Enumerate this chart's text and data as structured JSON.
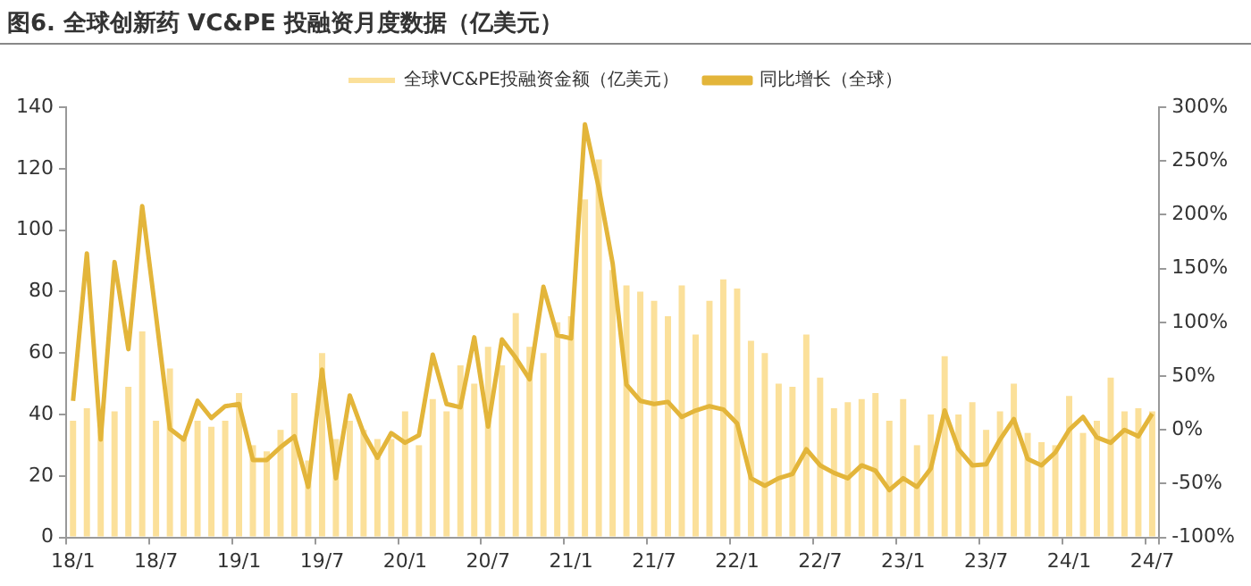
{
  "chart_data": {
    "type": "bar",
    "title": "图6. 全球创新药 VC&PE 投融资月度数据（亿美元）",
    "categories": [
      "18/1",
      null,
      null,
      null,
      null,
      null,
      "18/7",
      null,
      null,
      null,
      null,
      null,
      "19/1",
      null,
      null,
      null,
      null,
      null,
      "19/7",
      null,
      null,
      null,
      null,
      null,
      "20/1",
      null,
      null,
      null,
      null,
      null,
      "20/7",
      null,
      null,
      null,
      null,
      null,
      "21/1",
      null,
      null,
      null,
      null,
      null,
      "21/7",
      null,
      null,
      null,
      null,
      null,
      "22/1",
      null,
      null,
      null,
      null,
      null,
      "22/7",
      null,
      null,
      null,
      null,
      null,
      "23/1",
      null,
      null,
      null,
      null,
      null,
      "23/7",
      null,
      null,
      null,
      null,
      null,
      "24/1",
      null,
      null,
      null,
      null,
      null,
      "24/7"
    ],
    "series": [
      {
        "name": "全球VC&PE投融资金额（亿美元）",
        "color": "#fbe09a",
        "values": [
          38,
          42,
          35,
          41,
          49,
          67,
          38,
          55,
          33,
          38,
          36,
          38,
          47,
          30,
          28,
          35,
          47,
          25,
          60,
          32,
          38,
          35,
          32,
          32,
          41,
          30,
          45,
          41,
          56,
          50,
          62,
          56,
          73,
          62,
          60,
          70,
          72,
          110,
          123,
          87,
          82,
          80,
          77,
          72,
          82,
          66,
          77,
          84,
          81,
          64,
          60,
          50,
          49,
          66,
          52,
          42,
          44,
          45,
          47,
          38,
          45,
          30,
          40,
          59,
          40,
          44,
          35,
          41,
          50,
          34,
          31,
          30,
          46,
          34,
          38,
          52,
          41,
          42,
          41
        ]
      },
      {
        "name": "同比增长（全球）",
        "type": "line",
        "axis": "y2",
        "color": "#e3b53a",
        "values": [
          27,
          164,
          -9,
          156,
          75,
          208,
          106,
          1,
          -9,
          27,
          11,
          22,
          24,
          -28,
          -28,
          -16,
          -6,
          -53,
          56,
          -45,
          32,
          -3,
          -26,
          -3,
          -12,
          -5,
          70,
          24,
          21,
          86,
          3,
          84,
          67,
          47,
          133,
          88,
          85,
          284,
          225,
          155,
          42,
          27,
          24,
          26,
          12,
          18,
          22,
          19,
          6,
          -45,
          -52,
          -45,
          -41,
          -18,
          -33,
          -40,
          -45,
          -33,
          -38,
          -56,
          -45,
          -53,
          -36,
          18,
          -18,
          -33,
          -32,
          -9,
          10,
          -27,
          -33,
          -21,
          0,
          12,
          -7,
          -12,
          0,
          -6,
          15
        ]
      }
    ],
    "ylim": [
      0,
      140
    ],
    "yticks": [
      0,
      20,
      40,
      60,
      80,
      100,
      120,
      140
    ],
    "y2lim": [
      -100,
      300
    ],
    "y2ticks": [
      {
        "value": -100,
        "label": "-100%"
      },
      {
        "value": -50,
        "label": "-50%"
      },
      {
        "value": 0,
        "label": "0%"
      },
      {
        "value": 50,
        "label": "50%"
      },
      {
        "value": 100,
        "label": "100%"
      },
      {
        "value": 150,
        "label": "150%"
      },
      {
        "value": 200,
        "label": "200%"
      },
      {
        "value": 250,
        "label": "250%"
      },
      {
        "value": 300,
        "label": "300%"
      }
    ],
    "grid": false,
    "legend": "top"
  }
}
